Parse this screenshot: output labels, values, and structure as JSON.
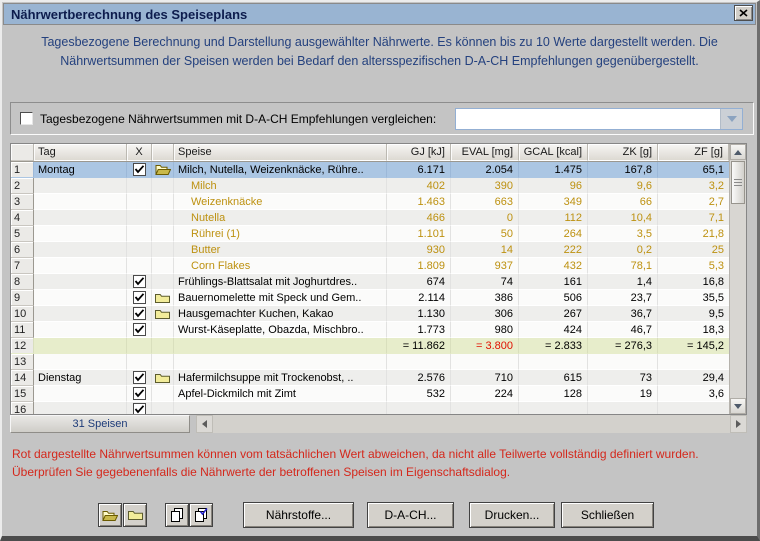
{
  "window": {
    "title": "Nährwertberechnung des Speiseplans"
  },
  "intro": {
    "text": "Tagesbezogene Berechnung und Darstellung ausgewählter Nährwerte. Es können bis zu 10 Werte dargestellt werden. Die Nährwertsummen der Speisen werden bei Bedarf den altersspezifischen D-A-CH Empfehlungen gegenübergestellt."
  },
  "compare": {
    "checked": false,
    "label": "Tagesbezogene Nährwertsummen mit D-A-CH Empfehlungen vergleichen:",
    "dropdown_value": ""
  },
  "table": {
    "headers": {
      "num": "",
      "tag": "Tag",
      "check": "X",
      "folder": "",
      "speise": "Speise",
      "values": [
        "GJ [kJ]",
        "EVAL [mg]",
        "GCAL [kcal]",
        "ZK [g]",
        "ZF [g]"
      ]
    },
    "rows": [
      {
        "num": "1",
        "tag": "Montag",
        "checked": true,
        "folder": "open",
        "speise": "Milch, Nutella, Weizenknäcke, Rühre..",
        "values": [
          "6.171",
          "2.054",
          "1.475",
          "167,8",
          "65,1"
        ],
        "type": "selected"
      },
      {
        "num": "2",
        "speise": "Milch",
        "values": [
          "402",
          "390",
          "96",
          "9,6",
          "3,2"
        ],
        "type": "sub"
      },
      {
        "num": "3",
        "speise": "Weizenknäcke",
        "values": [
          "1.463",
          "663",
          "349",
          "66",
          "2,7"
        ],
        "type": "sub"
      },
      {
        "num": "4",
        "speise": "Nutella",
        "values": [
          "466",
          "0",
          "112",
          "10,4",
          "7,1"
        ],
        "type": "sub"
      },
      {
        "num": "5",
        "speise": "Rührei (1)",
        "values": [
          "1.101",
          "50",
          "264",
          "3,5",
          "21,8"
        ],
        "type": "sub"
      },
      {
        "num": "6",
        "speise": "Butter",
        "values": [
          "930",
          "14",
          "222",
          "0,2",
          "25"
        ],
        "type": "sub"
      },
      {
        "num": "7",
        "speise": "Corn Flakes",
        "values": [
          "1.809",
          "937",
          "432",
          "78,1",
          "5,3"
        ],
        "type": "sub"
      },
      {
        "num": "8",
        "checked": true,
        "speise": "Frühlings-Blattsalat mit Joghurtdres..",
        "values": [
          "674",
          "74",
          "161",
          "1,4",
          "16,8"
        ]
      },
      {
        "num": "9",
        "checked": true,
        "folder": "closed",
        "speise": "Bauernomelette mit Speck und Gem..",
        "values": [
          "2.114",
          "386",
          "506",
          "23,7",
          "35,5"
        ]
      },
      {
        "num": "10",
        "checked": true,
        "folder": "closed",
        "speise": "Hausgemachter Kuchen, Kakao",
        "values": [
          "1.130",
          "306",
          "267",
          "36,7",
          "9,5"
        ]
      },
      {
        "num": "11",
        "checked": true,
        "speise": "Wurst-Käseplatte, Obazda, Mischbro..",
        "values": [
          "1.773",
          "980",
          "424",
          "46,7",
          "18,3"
        ]
      },
      {
        "num": "12",
        "values": [
          "= 11.862",
          "= 3.800",
          "= 2.833",
          "= 276,3",
          "= 145,2"
        ],
        "type": "sum",
        "red_values": [
          1
        ]
      },
      {
        "num": "13",
        "type": "empty"
      },
      {
        "num": "14",
        "tag": "Dienstag",
        "checked": true,
        "folder": "closed",
        "speise": "Hafermilchsuppe mit Trockenobst, ..",
        "values": [
          "2.576",
          "710",
          "615",
          "73",
          "29,4"
        ]
      },
      {
        "num": "15",
        "checked": true,
        "speise": "Apfel-Dickmilch mit Zimt",
        "values": [
          "532",
          "224",
          "128",
          "19",
          "3,6"
        ]
      },
      {
        "num": "16",
        "checked": true,
        "type": "partial"
      }
    ]
  },
  "status": {
    "speisen_count": "31 Speisen"
  },
  "warning": {
    "line1": "Rot dargestellte Nährwertsummen können vom tatsächlichen Wert abweichen, da nicht alle Teilwerte vollständig definiert wurden.",
    "line2": "Überprüfen Sie gegebenenfalls die Nährwerte der betroffenen Speisen im Eigenschaftsdialog."
  },
  "buttons": {
    "naehrstoffe": "Nährstoffe...",
    "dach": "D-A-CH...",
    "drucken": "Drucken...",
    "schliessen": "Schließen"
  },
  "icons": {
    "close": "x-icon",
    "dropdown": "chevron-down-icon",
    "folder_open": "folder-open-icon",
    "folder_closed": "folder-closed-icon",
    "copy": "copy-icon",
    "copy_check": "copy-check-icon"
  },
  "colors": {
    "titlebar_bg": "#99b4d2",
    "selected_row_bg": "#abc6e3",
    "sum_row_bg": "#e7edcb",
    "sub_item_text": "#bd9110",
    "warning_text": "#d4281c",
    "sum_red": "#e01000"
  }
}
